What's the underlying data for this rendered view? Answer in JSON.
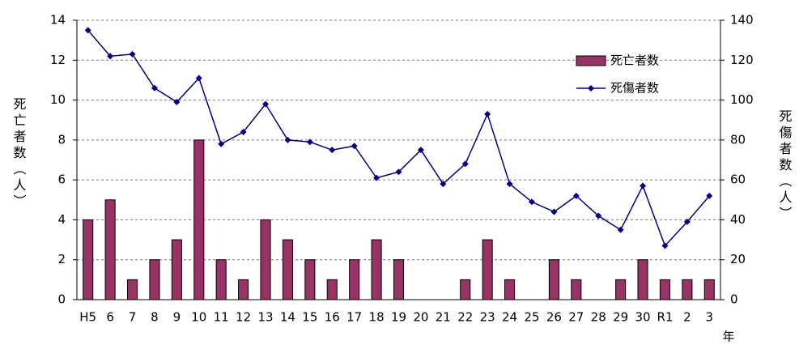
{
  "chart_data": {
    "type": "bar+line",
    "categories": [
      "H5",
      "6",
      "7",
      "8",
      "9",
      "10",
      "11",
      "12",
      "13",
      "14",
      "15",
      "16",
      "17",
      "18",
      "19",
      "20",
      "21",
      "22",
      "23",
      "24",
      "25",
      "26",
      "27",
      "28",
      "29",
      "30",
      "R1",
      "2",
      "3"
    ],
    "series": [
      {
        "name": "死亡者数",
        "type": "bar",
        "color": "#993366",
        "axis": "y",
        "values": [
          4,
          5,
          1,
          2,
          3,
          8,
          2,
          1,
          4,
          3,
          2,
          1,
          2,
          3,
          2,
          0,
          0,
          1,
          3,
          1,
          0,
          2,
          1,
          0,
          1,
          2,
          1,
          1,
          1
        ]
      },
      {
        "name": "死傷者数",
        "type": "line",
        "color": "#000080",
        "axis": "y2",
        "values": [
          135,
          122,
          123,
          106,
          99,
          111,
          78,
          84,
          98,
          80,
          79,
          75,
          77,
          61,
          64,
          75,
          58,
          68,
          93,
          58,
          49,
          44,
          52,
          42,
          35,
          57,
          27,
          39,
          52
        ]
      }
    ],
    "ylabel": "死亡者数（人）",
    "y2label": "死傷者数（人）",
    "xlabel": "年",
    "ylim": [
      0,
      14
    ],
    "yticks": [
      0,
      2,
      4,
      6,
      8,
      10,
      12,
      14
    ],
    "y2lim": [
      0,
      140
    ],
    "y2ticks": [
      0,
      20,
      40,
      60,
      80,
      100,
      120,
      140
    ],
    "grid": true,
    "legend": "upper right"
  }
}
